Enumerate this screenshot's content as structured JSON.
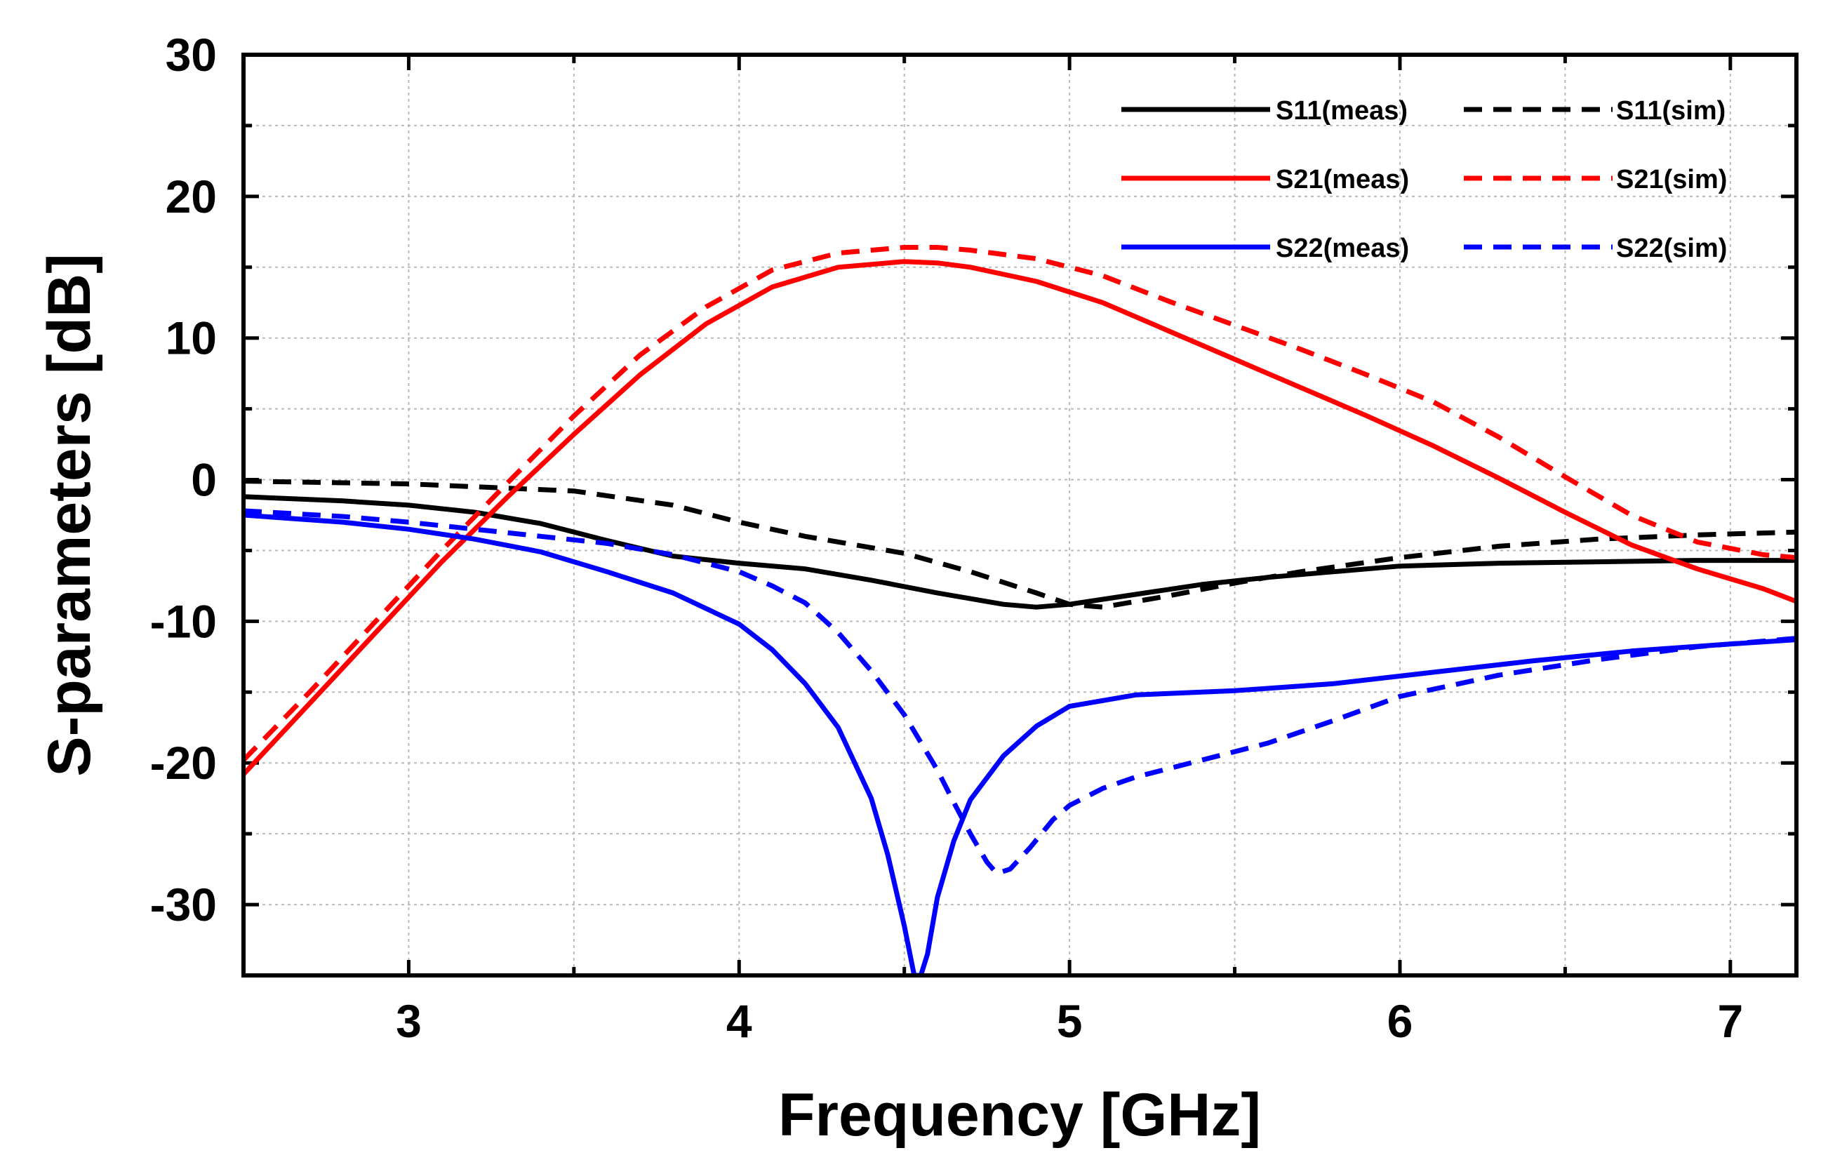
{
  "chart_data": {
    "type": "line",
    "title": "",
    "xlabel": "Frequency [GHz]",
    "ylabel": "S-parameters [dB]",
    "xlim": [
      2.5,
      7.2
    ],
    "ylim": [
      -35,
      30
    ],
    "xticks": [
      3,
      4,
      5,
      6,
      7
    ],
    "xtick_labels": [
      "3",
      "4",
      "5",
      "6",
      "7"
    ],
    "yticks": [
      -30,
      -20,
      -10,
      0,
      10,
      20,
      30
    ],
    "ytick_labels": [
      "-30",
      "-20",
      "-10",
      "0",
      "10",
      "20",
      "30"
    ],
    "grid": true,
    "legend_position": "top-right",
    "series": [
      {
        "name": "S11(meas)",
        "color": "#000000",
        "style": "solid",
        "x": [
          2.5,
          2.8,
          3.0,
          3.2,
          3.4,
          3.6,
          3.8,
          4.0,
          4.2,
          4.4,
          4.6,
          4.8,
          4.9,
          5.0,
          5.2,
          5.4,
          5.6,
          5.8,
          6.0,
          6.3,
          6.6,
          6.9,
          7.2
        ],
        "y": [
          -1.2,
          -1.5,
          -1.8,
          -2.3,
          -3.1,
          -4.3,
          -5.4,
          -5.9,
          -6.3,
          -7.1,
          -8.0,
          -8.8,
          -9.0,
          -8.8,
          -8.1,
          -7.4,
          -6.9,
          -6.5,
          -6.1,
          -5.9,
          -5.8,
          -5.7,
          -5.7
        ]
      },
      {
        "name": "S11(sim)",
        "color": "#000000",
        "style": "dashed",
        "x": [
          2.5,
          3.0,
          3.5,
          3.8,
          4.0,
          4.2,
          4.5,
          4.7,
          4.9,
          5.0,
          5.1,
          5.3,
          5.5,
          5.7,
          6.0,
          6.3,
          6.6,
          6.9,
          7.2
        ],
        "y": [
          -0.1,
          -0.3,
          -0.8,
          -1.8,
          -3.0,
          -4.0,
          -5.2,
          -6.5,
          -8.0,
          -8.8,
          -9.0,
          -8.2,
          -7.3,
          -6.5,
          -5.5,
          -4.7,
          -4.2,
          -3.9,
          -3.7
        ]
      },
      {
        "name": "S21(meas)",
        "color": "#ff0000",
        "style": "solid",
        "x": [
          2.5,
          2.7,
          2.9,
          3.1,
          3.3,
          3.5,
          3.7,
          3.9,
          4.1,
          4.3,
          4.5,
          4.6,
          4.7,
          4.9,
          5.1,
          5.3,
          5.5,
          5.7,
          5.9,
          6.1,
          6.3,
          6.5,
          6.7,
          6.9,
          7.1,
          7.2
        ],
        "y": [
          -20.8,
          -15.8,
          -10.8,
          -5.8,
          -1.2,
          3.2,
          7.4,
          11.0,
          13.6,
          15.0,
          15.4,
          15.3,
          15.0,
          14.0,
          12.5,
          10.5,
          8.5,
          6.5,
          4.5,
          2.4,
          0.1,
          -2.3,
          -4.6,
          -6.3,
          -7.7,
          -8.6
        ]
      },
      {
        "name": "S21(sim)",
        "color": "#ff0000",
        "style": "dashed",
        "x": [
          2.5,
          2.7,
          2.9,
          3.1,
          3.3,
          3.5,
          3.7,
          3.9,
          4.1,
          4.3,
          4.5,
          4.6,
          4.7,
          4.9,
          5.1,
          5.3,
          5.5,
          5.7,
          5.9,
          6.1,
          6.3,
          6.5,
          6.7,
          6.9,
          7.1,
          7.2
        ],
        "y": [
          -19.8,
          -15.0,
          -10.0,
          -5.0,
          -0.2,
          4.5,
          8.8,
          12.2,
          14.8,
          16.0,
          16.4,
          16.4,
          16.2,
          15.6,
          14.4,
          12.6,
          10.9,
          9.2,
          7.4,
          5.5,
          3.0,
          0.2,
          -2.5,
          -4.4,
          -5.3,
          -5.5
        ]
      },
      {
        "name": "S22(meas)",
        "color": "#0000ff",
        "style": "solid",
        "x": [
          2.5,
          2.8,
          3.0,
          3.2,
          3.4,
          3.6,
          3.8,
          4.0,
          4.1,
          4.2,
          4.3,
          4.4,
          4.45,
          4.5,
          4.53,
          4.55,
          4.57,
          4.6,
          4.65,
          4.7,
          4.8,
          4.9,
          5.0,
          5.2,
          5.5,
          5.8,
          6.1,
          6.4,
          6.7,
          7.0,
          7.2
        ],
        "y": [
          -2.5,
          -3.0,
          -3.5,
          -4.2,
          -5.1,
          -6.5,
          -8.0,
          -10.2,
          -12.0,
          -14.4,
          -17.5,
          -22.5,
          -26.5,
          -31.5,
          -35.0,
          -35.0,
          -33.5,
          -29.5,
          -25.5,
          -22.6,
          -19.5,
          -17.4,
          -16.0,
          -15.2,
          -14.9,
          -14.4,
          -13.6,
          -12.8,
          -12.1,
          -11.6,
          -11.3
        ]
      },
      {
        "name": "S22(sim)",
        "color": "#0000ff",
        "style": "dashed",
        "x": [
          2.5,
          2.8,
          3.0,
          3.2,
          3.4,
          3.6,
          3.8,
          4.0,
          4.1,
          4.2,
          4.3,
          4.4,
          4.5,
          4.6,
          4.65,
          4.7,
          4.75,
          4.78,
          4.82,
          4.88,
          4.95,
          5.0,
          5.1,
          5.2,
          5.4,
          5.6,
          5.8,
          6.0,
          6.3,
          6.6,
          6.9,
          7.2
        ],
        "y": [
          -2.2,
          -2.6,
          -3.0,
          -3.5,
          -4.0,
          -4.5,
          -5.3,
          -6.5,
          -7.5,
          -8.7,
          -10.8,
          -13.5,
          -16.6,
          -20.5,
          -22.8,
          -25.0,
          -27.0,
          -27.8,
          -27.5,
          -26.0,
          -24.0,
          -23.0,
          -21.8,
          -21.0,
          -19.8,
          -18.6,
          -17.0,
          -15.3,
          -13.8,
          -12.7,
          -11.8,
          -11.2
        ]
      }
    ]
  }
}
